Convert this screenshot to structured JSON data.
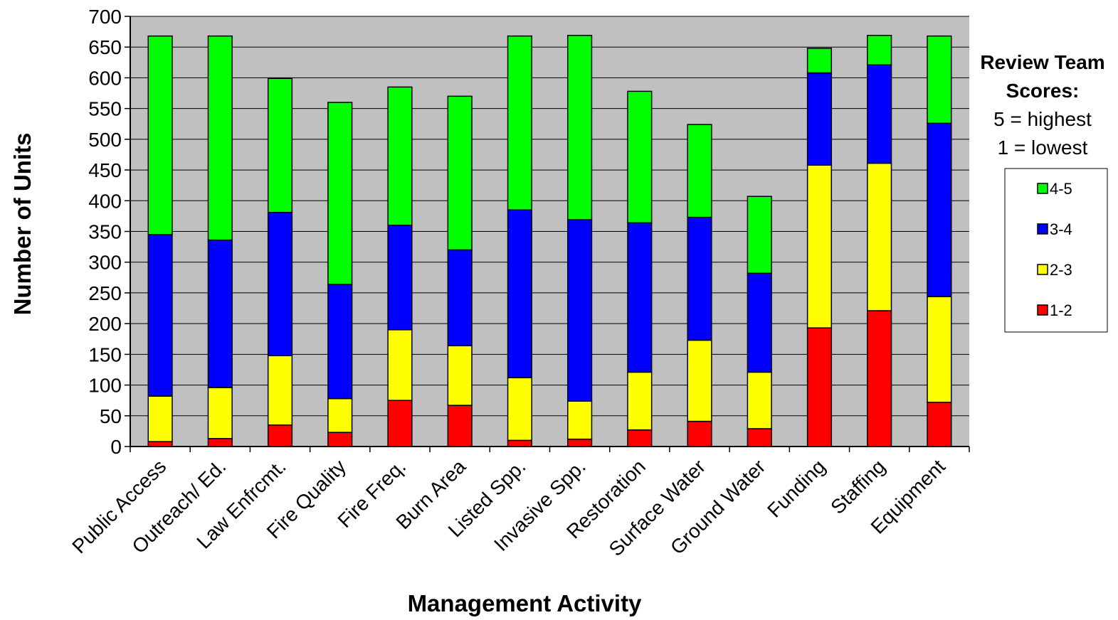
{
  "chart_data": {
    "type": "bar",
    "stacked": true,
    "categories": [
      "Public Access",
      "Outreach/ Ed.",
      "Law Enfrcmt.",
      "Fire Quality",
      "Fire Freq.",
      "Burn Area",
      "Listed Spp.",
      "Invasive Spp.",
      "Restoration",
      "Surface Water",
      "Ground Water",
      "Funding",
      "Staffing",
      "Equipment"
    ],
    "series": [
      {
        "name": "1-2",
        "color": "#ff0000",
        "values": [
          8,
          13,
          35,
          23,
          75,
          67,
          10,
          12,
          27,
          41,
          29,
          193,
          221,
          72
        ]
      },
      {
        "name": "2-3",
        "color": "#ffff00",
        "values": [
          74,
          83,
          113,
          55,
          115,
          97,
          102,
          62,
          94,
          132,
          92,
          265,
          240,
          172
        ]
      },
      {
        "name": "3-4",
        "color": "#0000ff",
        "values": [
          263,
          240,
          233,
          186,
          170,
          156,
          273,
          295,
          243,
          200,
          161,
          150,
          160,
          282
        ]
      },
      {
        "name": "4-5",
        "color": "#00ff00",
        "values": [
          323,
          332,
          218,
          296,
          225,
          250,
          283,
          300,
          214,
          151,
          125,
          40,
          48,
          142
        ]
      }
    ],
    "xlabel": "Management Activity",
    "ylabel": "Number of Units",
    "ylim": [
      0,
      700
    ],
    "yticks": [
      0,
      50,
      100,
      150,
      200,
      250,
      300,
      350,
      400,
      450,
      500,
      550,
      600,
      650,
      700
    ],
    "grid": true,
    "plot_background": "#c0c0c0",
    "legend": {
      "title_lines": [
        "Review Team",
        "Scores:",
        "5 = highest",
        "1 = lowest"
      ],
      "placement": "right",
      "order": [
        "4-5",
        "3-4",
        "2-3",
        "1-2"
      ]
    }
  }
}
